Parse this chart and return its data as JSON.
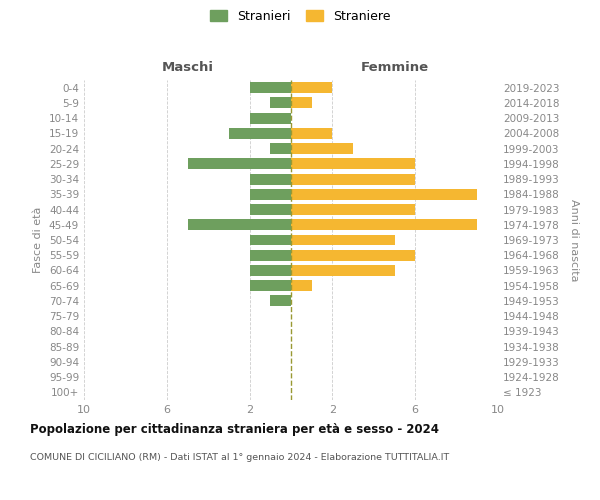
{
  "age_groups": [
    "100+",
    "95-99",
    "90-94",
    "85-89",
    "80-84",
    "75-79",
    "70-74",
    "65-69",
    "60-64",
    "55-59",
    "50-54",
    "45-49",
    "40-44",
    "35-39",
    "30-34",
    "25-29",
    "20-24",
    "15-19",
    "10-14",
    "5-9",
    "0-4"
  ],
  "birth_years": [
    "≤ 1923",
    "1924-1928",
    "1929-1933",
    "1934-1938",
    "1939-1943",
    "1944-1948",
    "1949-1953",
    "1954-1958",
    "1959-1963",
    "1964-1968",
    "1969-1973",
    "1974-1978",
    "1979-1983",
    "1984-1988",
    "1989-1993",
    "1994-1998",
    "1999-2003",
    "2004-2008",
    "2009-2013",
    "2014-2018",
    "2019-2023"
  ],
  "maschi": [
    0,
    0,
    0,
    0,
    0,
    0,
    1,
    2,
    2,
    2,
    2,
    5,
    2,
    2,
    2,
    5,
    1,
    3,
    2,
    1,
    2
  ],
  "femmine": [
    0,
    0,
    0,
    0,
    0,
    0,
    0,
    1,
    5,
    6,
    5,
    9,
    6,
    9,
    6,
    6,
    3,
    2,
    0,
    1,
    2
  ],
  "color_maschi": "#6e9f5e",
  "color_femmine": "#f5b731",
  "title": "Popolazione per cittadinanza straniera per età e sesso - 2024",
  "subtitle": "COMUNE DI CICILIANO (RM) - Dati ISTAT al 1° gennaio 2024 - Elaborazione TUTTITALIA.IT",
  "legend_maschi": "Stranieri",
  "legend_femmine": "Straniere",
  "label_maschi": "Maschi",
  "label_femmine": "Femmine",
  "ylabel_left": "Fasce di età",
  "ylabel_right": "Anni di nascita",
  "xlim": 10,
  "xtick_positions": [
    -10,
    -6,
    -2,
    2,
    6,
    10
  ],
  "xtick_labels": [
    "10",
    "6",
    "2",
    "2",
    "6",
    "10"
  ],
  "background_color": "#ffffff",
  "grid_color": "#cccccc",
  "center_line_color": "#999933"
}
